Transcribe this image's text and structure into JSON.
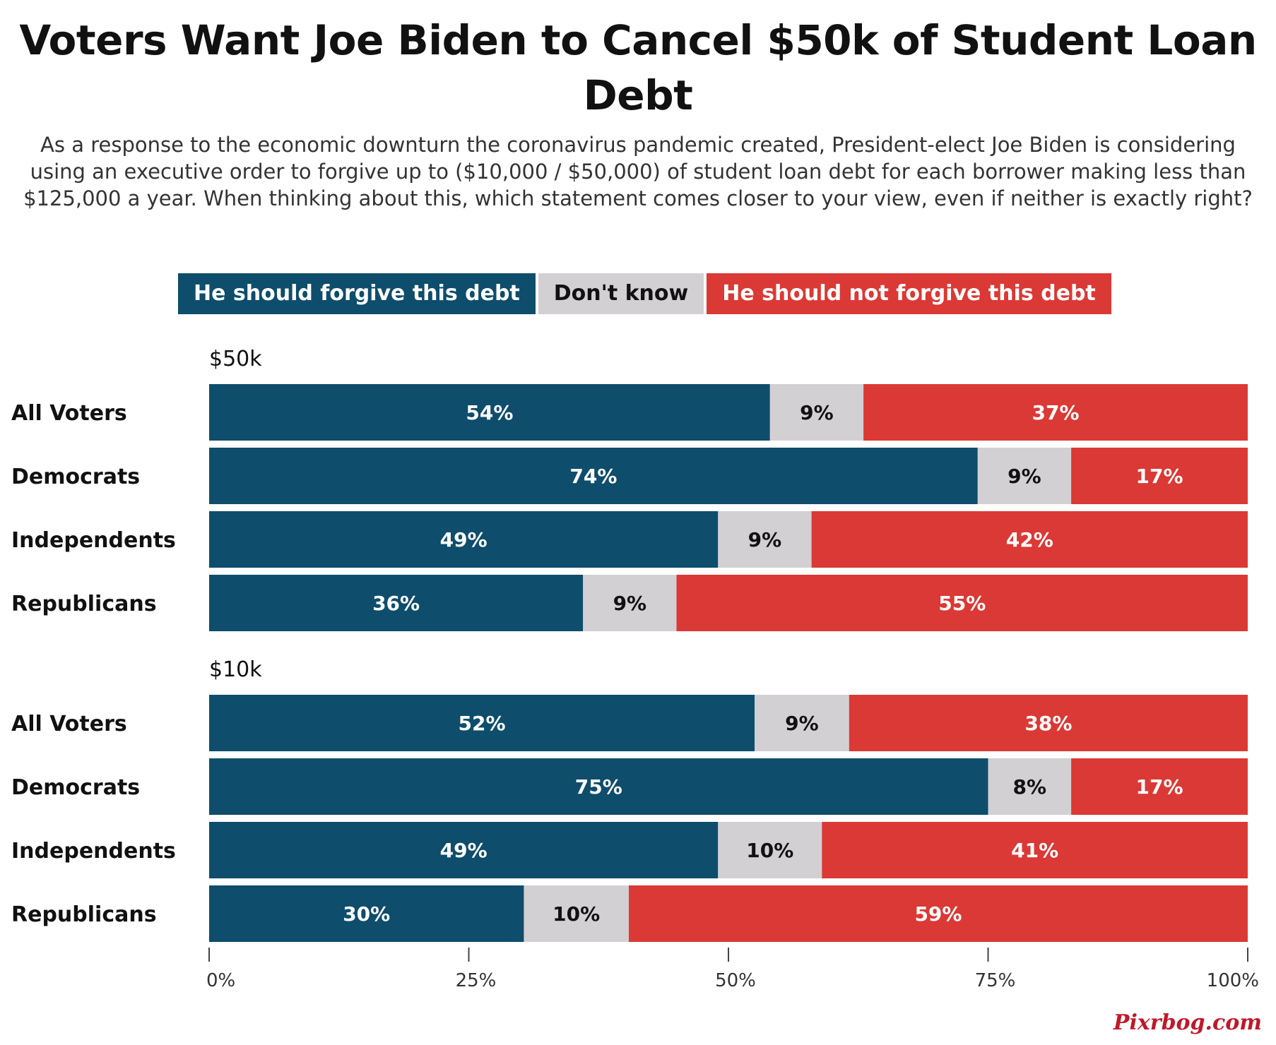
{
  "title": "Voters Want Joe Biden to Cancel $50k of Student Loan Debt",
  "subtitle": "As a response to the economic downturn the coronavirus pandemic created, President-elect Joe Biden is considering using an executive order to forgive up to ($10,000 / $50,000) of student loan debt for each borrower making less than $125,000 a year. When thinking about this, which statement comes closer to your view, even if neither is exactly right?",
  "legend": [
    {
      "label": "He should forgive this debt",
      "color": "#0e4d6b",
      "text_color": "#ffffff"
    },
    {
      "label": "Don't know",
      "color": "#d3d0d3",
      "text_color": "#111111"
    },
    {
      "label": "He should not forgive this debt",
      "color": "#db3935",
      "text_color": "#ffffff"
    }
  ],
  "watermark": "Pixrbog.com",
  "chart_data": {
    "type": "bar",
    "orientation": "horizontal",
    "stacked": true,
    "xlim": [
      0,
      100
    ],
    "ticks": [
      "0%",
      "25%",
      "50%",
      "75%",
      "100%"
    ],
    "tick_values": [
      0,
      25,
      50,
      75,
      100
    ],
    "groups": [
      {
        "label": "$50k",
        "rows": [
          {
            "label": "All Voters",
            "values": [
              54,
              9,
              37
            ],
            "labels": [
              "54%",
              "9%",
              "37%"
            ]
          },
          {
            "label": "Democrats",
            "values": [
              74,
              9,
              17
            ],
            "labels": [
              "74%",
              "9%",
              "17%"
            ]
          },
          {
            "label": "Independents",
            "values": [
              49,
              9,
              42
            ],
            "labels": [
              "49%",
              "9%",
              "42%"
            ]
          },
          {
            "label": "Republicans",
            "values": [
              36,
              9,
              55
            ],
            "labels": [
              "36%",
              "9%",
              "55%"
            ]
          }
        ]
      },
      {
        "label": "$10k",
        "rows": [
          {
            "label": "All Voters",
            "values": [
              52,
              9,
              38
            ],
            "labels": [
              "52%",
              "9%",
              "38%"
            ]
          },
          {
            "label": "Democrats",
            "values": [
              75,
              8,
              17
            ],
            "labels": [
              "75%",
              "8%",
              "17%"
            ]
          },
          {
            "label": "Independents",
            "values": [
              49,
              10,
              41
            ],
            "labels": [
              "49%",
              "10%",
              "41%"
            ]
          },
          {
            "label": "Republicans",
            "values": [
              30,
              10,
              59
            ],
            "labels": [
              "30%",
              "10%",
              "59%"
            ]
          }
        ]
      }
    ]
  }
}
